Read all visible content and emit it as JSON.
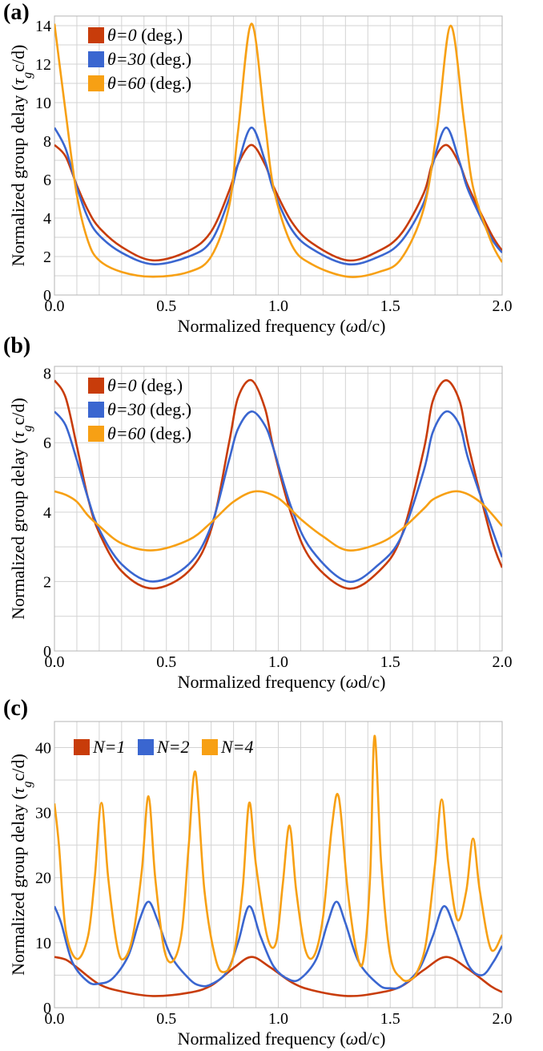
{
  "chart_data": [
    {
      "panel": "(a)",
      "type": "line",
      "xlabel": "Normalized frequency (ωd/c)",
      "ylabel": "Normalized group delay (τgc/d)",
      "xlim": [
        0,
        2
      ],
      "ylim": [
        0,
        14.5
      ],
      "xticks": [
        "0.0",
        "0.5",
        "1.0",
        "1.5",
        "2.0"
      ],
      "yticks": [
        "0",
        "2",
        "4",
        "6",
        "8",
        "10",
        "12",
        "14"
      ],
      "grid": true,
      "legend_position": "top-left",
      "series": [
        {
          "name": "θ=0 (deg.)",
          "color": "#c83c0a",
          "x": [
            0,
            0.05,
            0.1,
            0.15,
            0.2,
            0.3,
            0.44,
            0.6,
            0.7,
            0.78,
            0.82,
            0.88,
            0.94,
            0.98,
            1.06,
            1.15,
            1.31,
            1.45,
            1.55,
            1.65,
            1.69,
            1.75,
            1.81,
            1.85,
            1.95,
            2.0
          ],
          "y": [
            7.8,
            7.2,
            5.7,
            4.4,
            3.5,
            2.5,
            1.8,
            2.3,
            3.3,
            5.4,
            6.8,
            7.8,
            6.8,
            5.6,
            3.8,
            2.7,
            1.8,
            2.3,
            3.2,
            5.3,
            6.9,
            7.8,
            6.8,
            5.6,
            3.2,
            2.3
          ]
        },
        {
          "name": "θ=30 (deg.)",
          "color": "#3a66d0",
          "x": [
            0,
            0.05,
            0.1,
            0.15,
            0.2,
            0.3,
            0.44,
            0.6,
            0.7,
            0.78,
            0.82,
            0.88,
            0.94,
            0.98,
            1.06,
            1.15,
            1.31,
            1.45,
            1.55,
            1.65,
            1.69,
            1.75,
            1.81,
            1.85,
            1.95,
            2.0
          ],
          "y": [
            8.7,
            7.6,
            5.6,
            4.0,
            3.1,
            2.2,
            1.6,
            2.0,
            2.8,
            5.0,
            6.8,
            8.7,
            7.0,
            5.4,
            3.4,
            2.4,
            1.6,
            2.0,
            2.8,
            4.8,
            6.8,
            8.7,
            6.9,
            5.4,
            3.0,
            2.2
          ]
        },
        {
          "name": "θ=60 (deg.)",
          "color": "#f7a014",
          "x": [
            0,
            0.05,
            0.1,
            0.15,
            0.2,
            0.3,
            0.44,
            0.6,
            0.7,
            0.78,
            0.82,
            0.88,
            0.94,
            0.98,
            1.06,
            1.15,
            1.31,
            1.45,
            1.55,
            1.65,
            1.71,
            1.77,
            1.83,
            1.87,
            1.95,
            2.0
          ],
          "y": [
            14.1,
            9.5,
            5.2,
            2.8,
            1.8,
            1.2,
            0.95,
            1.2,
            2.0,
            4.6,
            8.5,
            14.1,
            9.0,
            5.5,
            2.6,
            1.6,
            0.95,
            1.2,
            1.9,
            4.5,
            8.7,
            14.0,
            9.0,
            5.6,
            2.8,
            1.7
          ]
        }
      ]
    },
    {
      "panel": "(b)",
      "type": "line",
      "xlabel": "Normalized frequency (ωd/c)",
      "ylabel": "Normalized group delay (τgc/d)",
      "xlim": [
        0,
        2
      ],
      "ylim": [
        0,
        8.2
      ],
      "xticks": [
        "0.0",
        "0.5",
        "1.0",
        "1.5",
        "2.0"
      ],
      "yticks": [
        "0",
        "2",
        "4",
        "6",
        "8"
      ],
      "grid": true,
      "legend_position": "top-left",
      "series": [
        {
          "name": "θ=0 (deg.)",
          "color": "#c83c0a",
          "x": [
            0,
            0.05,
            0.1,
            0.15,
            0.2,
            0.3,
            0.44,
            0.6,
            0.7,
            0.78,
            0.82,
            0.88,
            0.94,
            0.98,
            1.06,
            1.15,
            1.31,
            1.45,
            1.55,
            1.65,
            1.69,
            1.75,
            1.81,
            1.85,
            1.95,
            2.0
          ],
          "y": [
            7.8,
            7.3,
            5.9,
            4.4,
            3.4,
            2.3,
            1.8,
            2.3,
            3.5,
            6.0,
            7.3,
            7.8,
            7.0,
            5.8,
            3.9,
            2.6,
            1.8,
            2.3,
            3.3,
            5.8,
            7.2,
            7.8,
            7.2,
            5.9,
            3.3,
            2.4
          ]
        },
        {
          "name": "θ=30 (deg.)",
          "color": "#3a66d0",
          "x": [
            0,
            0.05,
            0.1,
            0.15,
            0.2,
            0.3,
            0.44,
            0.6,
            0.7,
            0.78,
            0.82,
            0.88,
            0.94,
            0.98,
            1.06,
            1.15,
            1.31,
            1.45,
            1.55,
            1.65,
            1.69,
            1.75,
            1.81,
            1.85,
            1.95,
            2.0
          ],
          "y": [
            6.9,
            6.5,
            5.5,
            4.4,
            3.5,
            2.5,
            2.0,
            2.5,
            3.6,
            5.5,
            6.4,
            6.9,
            6.5,
            5.8,
            4.1,
            2.9,
            2.0,
            2.5,
            3.3,
            5.2,
            6.3,
            6.9,
            6.5,
            5.5,
            3.6,
            2.7
          ]
        },
        {
          "name": "θ=60 (deg.)",
          "color": "#f7a014",
          "x": [
            0,
            0.05,
            0.1,
            0.15,
            0.2,
            0.3,
            0.44,
            0.6,
            0.7,
            0.8,
            0.9,
            1.0,
            1.1,
            1.2,
            1.31,
            1.45,
            1.55,
            1.65,
            1.7,
            1.8,
            1.9,
            2.0
          ],
          "y": [
            4.6,
            4.5,
            4.3,
            3.9,
            3.6,
            3.1,
            2.9,
            3.2,
            3.7,
            4.3,
            4.6,
            4.4,
            3.8,
            3.3,
            2.9,
            3.1,
            3.5,
            4.1,
            4.4,
            4.6,
            4.3,
            3.6
          ]
        }
      ]
    },
    {
      "panel": "(c)",
      "type": "line",
      "xlabel": "Normalized frequency (ωd/c)",
      "ylabel": "Normalized group delay (τgc/d)",
      "xlim": [
        0,
        2
      ],
      "ylim": [
        0,
        44
      ],
      "xticks": [
        "0.0",
        "0.5",
        "1.0",
        "1.5",
        "2.0"
      ],
      "yticks": [
        "0",
        "10",
        "20",
        "30",
        "40"
      ],
      "grid": true,
      "legend_position": "top-left",
      "series": [
        {
          "name": "N=1",
          "color": "#c83c0a",
          "x": [
            0,
            0.05,
            0.1,
            0.2,
            0.3,
            0.44,
            0.6,
            0.7,
            0.8,
            0.88,
            0.96,
            1.06,
            1.15,
            1.31,
            1.45,
            1.55,
            1.65,
            1.75,
            1.85,
            1.95,
            2.0
          ],
          "y": [
            7.8,
            7.4,
            6.2,
            3.6,
            2.5,
            1.8,
            2.3,
            3.4,
            6.1,
            7.8,
            6.3,
            3.9,
            2.7,
            1.8,
            2.3,
            3.3,
            5.8,
            7.8,
            5.9,
            3.3,
            2.4
          ]
        },
        {
          "name": "N=2",
          "color": "#3a66d0",
          "x": [
            0,
            0.03,
            0.08,
            0.15,
            0.2,
            0.26,
            0.33,
            0.38,
            0.42,
            0.46,
            0.52,
            0.6,
            0.65,
            0.7,
            0.77,
            0.82,
            0.87,
            0.92,
            0.98,
            1.05,
            1.1,
            1.17,
            1.22,
            1.26,
            1.3,
            1.36,
            1.45,
            1.5,
            1.55,
            1.63,
            1.69,
            1.74,
            1.79,
            1.85,
            1.91,
            1.96,
            2.0
          ],
          "y": [
            15.6,
            13.0,
            7.0,
            4.0,
            3.7,
            4.5,
            8.0,
            13.5,
            16.3,
            13.5,
            8.0,
            4.5,
            3.4,
            3.6,
            5.5,
            10.0,
            15.6,
            11.0,
            6.3,
            4.3,
            4.5,
            7.5,
            13.0,
            16.3,
            13.0,
            7.0,
            3.5,
            3.0,
            3.3,
            6.0,
            11.0,
            15.6,
            12.0,
            6.5,
            5.0,
            7.0,
            9.5
          ]
        },
        {
          "name": "N=4",
          "color": "#f7a014",
          "x": [
            0,
            0.02,
            0.05,
            0.1,
            0.15,
            0.18,
            0.21,
            0.24,
            0.28,
            0.31,
            0.35,
            0.39,
            0.42,
            0.45,
            0.49,
            0.53,
            0.57,
            0.6,
            0.63,
            0.67,
            0.72,
            0.76,
            0.8,
            0.84,
            0.87,
            0.9,
            0.95,
            0.99,
            1.02,
            1.05,
            1.08,
            1.12,
            1.16,
            1.2,
            1.24,
            1.27,
            1.31,
            1.35,
            1.38,
            1.41,
            1.43,
            1.46,
            1.5,
            1.55,
            1.59,
            1.62,
            1.66,
            1.7,
            1.73,
            1.76,
            1.8,
            1.84,
            1.87,
            1.9,
            1.95,
            2.0
          ],
          "y": [
            31.4,
            25.0,
            12.0,
            7.5,
            11.0,
            20.0,
            31.5,
            20.0,
            9.5,
            7.5,
            11.0,
            21.0,
            32.5,
            20.0,
            9.0,
            7.2,
            12.0,
            25.0,
            36.2,
            18.0,
            7.5,
            5.5,
            8.0,
            18.0,
            31.5,
            22.0,
            11.0,
            10.0,
            19.0,
            28.0,
            18.0,
            9.0,
            8.0,
            14.0,
            28.0,
            32.4,
            18.0,
            8.5,
            7.3,
            20.0,
            41.8,
            22.0,
            8.0,
            4.5,
            4.3,
            5.5,
            10.0,
            22.0,
            32.0,
            22.0,
            13.5,
            18.0,
            26.0,
            18.0,
            9.0,
            11.2
          ]
        }
      ]
    }
  ]
}
